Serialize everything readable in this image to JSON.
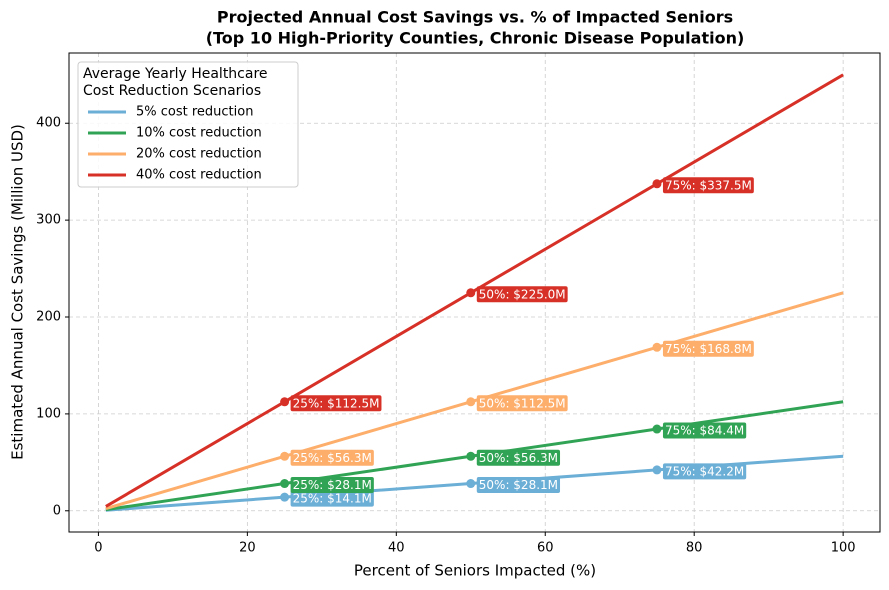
{
  "chart_data": {
    "type": "line",
    "title": "Projected Annual Cost Savings vs. % of Impacted Seniors",
    "subtitle": "(Top 10 High-Priority Counties, Chronic Disease Population)",
    "x_label": "Percent of Seniors Impacted (%)",
    "y_label": "Estimated Annual Cost Savings (Million USD)",
    "legend_title": [
      "Average Yearly Healthcare",
      "Cost Reduction Scenarios"
    ],
    "legend_position": "upper left",
    "grid": true,
    "x": [
      1,
      25,
      50,
      75,
      100
    ],
    "xlim": [
      -3.95,
      104.95
    ],
    "xticks": [
      0,
      20,
      40,
      60,
      80,
      100
    ],
    "ylim": [
      -21.9,
      472.5
    ],
    "yticks": [
      0,
      100,
      200,
      300,
      400
    ],
    "series": [
      {
        "name": "5% cost reduction",
        "color": "#6baed6",
        "values": [
          0.5625,
          14.0625,
          28.125,
          42.1875,
          56.25
        ],
        "value_labels": [
          null,
          "25%: $14.1M",
          "50%: $28.1M",
          "75%: $42.2M",
          null
        ]
      },
      {
        "name": "10% cost reduction",
        "color": "#31a354",
        "values": [
          1.125,
          28.125,
          56.25,
          84.375,
          112.5
        ],
        "value_labels": [
          null,
          "25%: $28.1M",
          "50%: $56.3M",
          "75%: $84.4M",
          null
        ]
      },
      {
        "name": "20% cost reduction",
        "color": "#fdae6b",
        "values": [
          2.25,
          56.25,
          112.5,
          168.75,
          225
        ],
        "value_labels": [
          null,
          "25%: $56.3M",
          "50%: $112.5M",
          "75%: $168.8M",
          null
        ]
      },
      {
        "name": "40% cost reduction",
        "color": "#d73027",
        "values": [
          4.5,
          112.5,
          225,
          337.5,
          450
        ],
        "value_labels": [
          null,
          "25%: $112.5M",
          "50%: $225.0M",
          "75%: $337.5M",
          null
        ]
      }
    ]
  }
}
